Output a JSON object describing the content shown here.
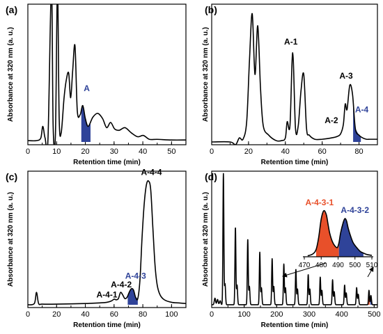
{
  "chart_data": [
    {
      "type": "line",
      "panel": "(a)",
      "xlabel": "Retention time (min)",
      "ylabel": "Absorbance at 320 nm (a. u.)",
      "xlim": [
        0,
        55
      ],
      "xticks": [
        0,
        10,
        20,
        30,
        40,
        50
      ],
      "grid": false,
      "series": [
        {
          "x": [
            0,
            3,
            4.5,
            5.2,
            6,
            7,
            8.2,
            8.8,
            9.6,
            10.3,
            10.9,
            11.6,
            12.6,
            13.4,
            14.2,
            14.9,
            15.6,
            16.4,
            17.2,
            18.2,
            19.1,
            20,
            21,
            22.6,
            24.3,
            26,
            27.4,
            28.8,
            30.2,
            31.8,
            33.8,
            36,
            38.2,
            40.2,
            42.3,
            45,
            50,
            55
          ],
          "y": [
            0.01,
            0.01,
            0.03,
            0.12,
            0.03,
            0.02,
            1.2,
            0.12,
            0.06,
            1.2,
            0.18,
            0.07,
            0.34,
            0.48,
            0.53,
            0.34,
            0.55,
            0.74,
            0.24,
            0.21,
            0.28,
            0.18,
            0.12,
            0.19,
            0.22,
            0.18,
            0.11,
            0.15,
            0.1,
            0.09,
            0.11,
            0.07,
            0.04,
            0.05,
            0.02,
            0.02,
            0.015,
            0.015
          ]
        }
      ],
      "shaded_fractions": [
        {
          "label": "A",
          "range": [
            18.6,
            21.8
          ],
          "color": "#2f4399"
        }
      ],
      "annotations": [
        {
          "text": "A",
          "x": 20.5,
          "y": 0.39,
          "color": "#2f4399"
        }
      ]
    },
    {
      "type": "line",
      "panel": "(b)",
      "xlabel": "Retention time (min)",
      "ylabel": "Absorbance at 320 nm (a. u.)",
      "xlim": [
        0,
        90
      ],
      "xticks": [
        0,
        20,
        40,
        60,
        80
      ],
      "grid": false,
      "series": [
        {
          "x": [
            0,
            10,
            13,
            15,
            17,
            19,
            20.5,
            22,
            23.5,
            25,
            26.5,
            28,
            31,
            35,
            38,
            40,
            41,
            42.5,
            44,
            45.5,
            47,
            48.5,
            50,
            51.5,
            53,
            56,
            60,
            65,
            68,
            70,
            71.5,
            72.5,
            73.5,
            75,
            76.5,
            78,
            80,
            82,
            84,
            86,
            90
          ],
          "y": [
            0,
            0,
            -0.02,
            0.03,
            0.02,
            0.15,
            0.6,
            0.95,
            0.5,
            0.86,
            0.4,
            0.12,
            0.05,
            0.01,
            0.01,
            0.03,
            0.15,
            0.12,
            0.66,
            0.1,
            0.12,
            0.38,
            0.5,
            0.1,
            0.05,
            0.02,
            0.02,
            0.03,
            0.04,
            0.06,
            0.13,
            0.28,
            0.24,
            0.42,
            0.35,
            0.1,
            0.05,
            0.03,
            0.02,
            0.02,
            0.02
          ]
        }
      ],
      "shaded_fractions": [
        {
          "label": "A-4",
          "range": [
            76.8,
            81
          ],
          "color": "#2f4399"
        }
      ],
      "annotations": [
        {
          "text": "A-1",
          "x": 43,
          "y": 0.72,
          "color": "#000000"
        },
        {
          "text": "A-3",
          "x": 73,
          "y": 0.47,
          "color": "#000000"
        },
        {
          "text": "A-2",
          "x": 65,
          "y": 0.14,
          "color": "#000000"
        },
        {
          "text": "A-4",
          "x": 81.5,
          "y": 0.22,
          "color": "#2f4399"
        }
      ]
    },
    {
      "type": "line",
      "panel": "(c)",
      "xlabel": "Retention time (min)",
      "ylabel": "Absorbance at 320 nm (a. u.)",
      "xlim": [
        0,
        110
      ],
      "xticks": [
        0,
        20,
        40,
        60,
        80,
        100
      ],
      "grid": false,
      "series": [
        {
          "x": [
            0,
            4.5,
            6,
            7.5,
            10,
            20,
            40,
            50,
            55,
            58,
            60,
            61.5,
            63,
            64.5,
            66,
            67.5,
            69,
            70.5,
            72,
            73.5,
            75,
            76.5,
            78,
            79.5,
            81,
            82.5,
            84,
            85.5,
            87,
            88.5,
            90,
            92,
            95,
            100,
            105,
            110
          ],
          "y": [
            0,
            0.01,
            0.1,
            0.01,
            0.005,
            0.005,
            0.01,
            0.015,
            0.02,
            0.03,
            0.045,
            0.04,
            0.05,
            0.1,
            0.08,
            0.05,
            0.06,
            0.1,
            0.13,
            0.12,
            0.06,
            0.05,
            0.2,
            0.55,
            0.82,
            0.97,
            1.0,
            0.93,
            0.62,
            0.32,
            0.16,
            0.08,
            0.04,
            0.02,
            0.015,
            0.01
          ]
        }
      ],
      "shaded_fractions": [
        {
          "label": "A-4-3",
          "range": [
            69.5,
            76.5
          ],
          "color": "#2f4399"
        }
      ],
      "annotations": [
        {
          "text": "A-4-4",
          "x": 86,
          "y": 1.05,
          "color": "#000000"
        },
        {
          "text": "A-4-3",
          "x": 75,
          "y": 0.21,
          "color": "#2f4399"
        },
        {
          "text": "A-4-2",
          "x": 65,
          "y": 0.14,
          "color": "#000000"
        },
        {
          "text": "A-4-1",
          "x": 55,
          "y": 0.06,
          "color": "#000000"
        }
      ]
    },
    {
      "type": "line",
      "panel": "(d)",
      "xlabel": "Retention time (min)",
      "ylabel": "Absorbance at 320 nm (a. u.)",
      "xlim": [
        0,
        510
      ],
      "xticks": [
        0,
        100,
        200,
        300,
        400,
        500
      ],
      "grid": false,
      "peak_pairs": [
        {
          "x1": 36,
          "y1": 1.0,
          "x2": 41,
          "y2": 0.16
        },
        {
          "x1": 73,
          "y1": 0.59,
          "x2": 78,
          "y2": 0.15
        },
        {
          "x1": 111,
          "y1": 0.5,
          "x2": 116,
          "y2": 0.14
        },
        {
          "x1": 148,
          "y1": 0.4,
          "x2": 153,
          "y2": 0.13
        },
        {
          "x1": 186,
          "y1": 0.35,
          "x2": 191,
          "y2": 0.14
        },
        {
          "x1": 222,
          "y1": 0.31,
          "x2": 227,
          "y2": 0.13
        },
        {
          "x1": 259,
          "y1": 0.27,
          "x2": 264,
          "y2": 0.12
        },
        {
          "x1": 297,
          "y1": 0.23,
          "x2": 302,
          "y2": 0.12
        },
        {
          "x1": 334,
          "y1": 0.21,
          "x2": 339,
          "y2": 0.11
        },
        {
          "x1": 372,
          "y1": 0.19,
          "x2": 377,
          "y2": 0.1
        },
        {
          "x1": 409,
          "y1": 0.15,
          "x2": 414,
          "y2": 0.09
        },
        {
          "x1": 446,
          "y1": 0.13,
          "x2": 451,
          "y2": 0.08
        },
        {
          "x1": 484,
          "y1": 0.11,
          "x2": 490,
          "y2": 0.07
        }
      ],
      "inset": {
        "xlim": [
          470,
          510
        ],
        "xticks": [
          470,
          480,
          490,
          500,
          510
        ],
        "series": [
          {
            "x": [
              472,
              475,
              477,
              478.5,
              480,
              481.5,
              483,
              484,
              485,
              486.5,
              488,
              489.5,
              490.5,
              491.5,
              493,
              494,
              495,
              496,
              497.5,
              499,
              501,
              503,
              505,
              507,
              510
            ],
            "y": [
              0.02,
              0.06,
              0.16,
              0.42,
              0.82,
              1.0,
              0.92,
              0.72,
              0.52,
              0.34,
              0.24,
              0.2,
              0.3,
              0.52,
              0.74,
              0.83,
              0.78,
              0.62,
              0.44,
              0.3,
              0.2,
              0.12,
              0.08,
              0.05,
              0.03
            ]
          }
        ],
        "shaded_fractions": [
          {
            "label": "A-4-3-1",
            "range": [
              477,
              490.5
            ],
            "color": "#e8502a"
          },
          {
            "label": "A-4-3-2",
            "range": [
              490.5,
              505
            ],
            "color": "#2f4399"
          }
        ],
        "annotations": [
          {
            "text": "A-4-3-1",
            "x": 479,
            "y": 1.12,
            "color": "#e8502a"
          },
          {
            "text": "A-4-3-2",
            "x": 500,
            "y": 0.95,
            "color": "#2f4399"
          }
        ]
      }
    }
  ]
}
